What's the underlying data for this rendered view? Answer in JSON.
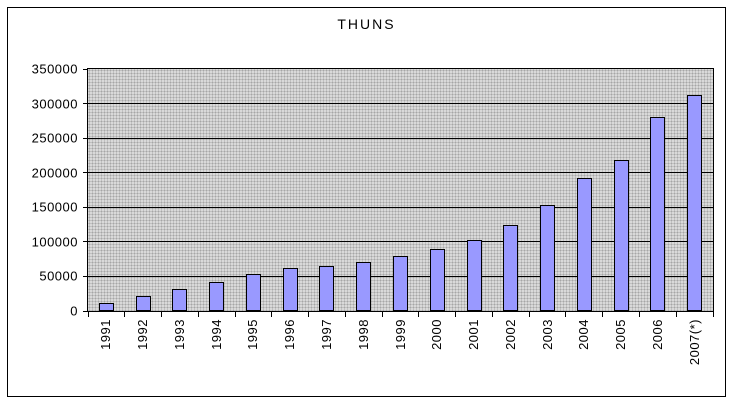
{
  "window": {
    "background_color": "#FFFFFF",
    "border_color": "#000000"
  },
  "chart_data": {
    "type": "bar",
    "title": "THUNS",
    "xlabel": "",
    "ylabel": "",
    "categories": [
      "1991",
      "1992",
      "1993",
      "1994",
      "1995",
      "1996",
      "1997",
      "1998",
      "1999",
      "2000",
      "2001",
      "2002",
      "2003",
      "2004",
      "2005",
      "2006",
      "2007(*)"
    ],
    "values": [
      12000,
      22000,
      32000,
      42000,
      53000,
      62000,
      65000,
      71000,
      79000,
      90000,
      102000,
      125000,
      154000,
      192000,
      218000,
      281000,
      312000
    ],
    "ylim": [
      0,
      350000
    ],
    "ytick_step": 50000,
    "ytick_labels": [
      "0",
      "50000",
      "100000",
      "150000",
      "200000",
      "250000",
      "300000",
      "350000"
    ],
    "grid": "horizontal-major",
    "legend": "none",
    "x_label_rotation_degrees": 90,
    "bar_fill_color": "#9999FF",
    "bar_border_color": "#000000",
    "plot_background_color": "#D9D9D9",
    "plot_pattern_dot_color": "#A6A6A6",
    "gridline_color": "#000000",
    "axis_color": "#000000",
    "text_color": "#000000"
  }
}
